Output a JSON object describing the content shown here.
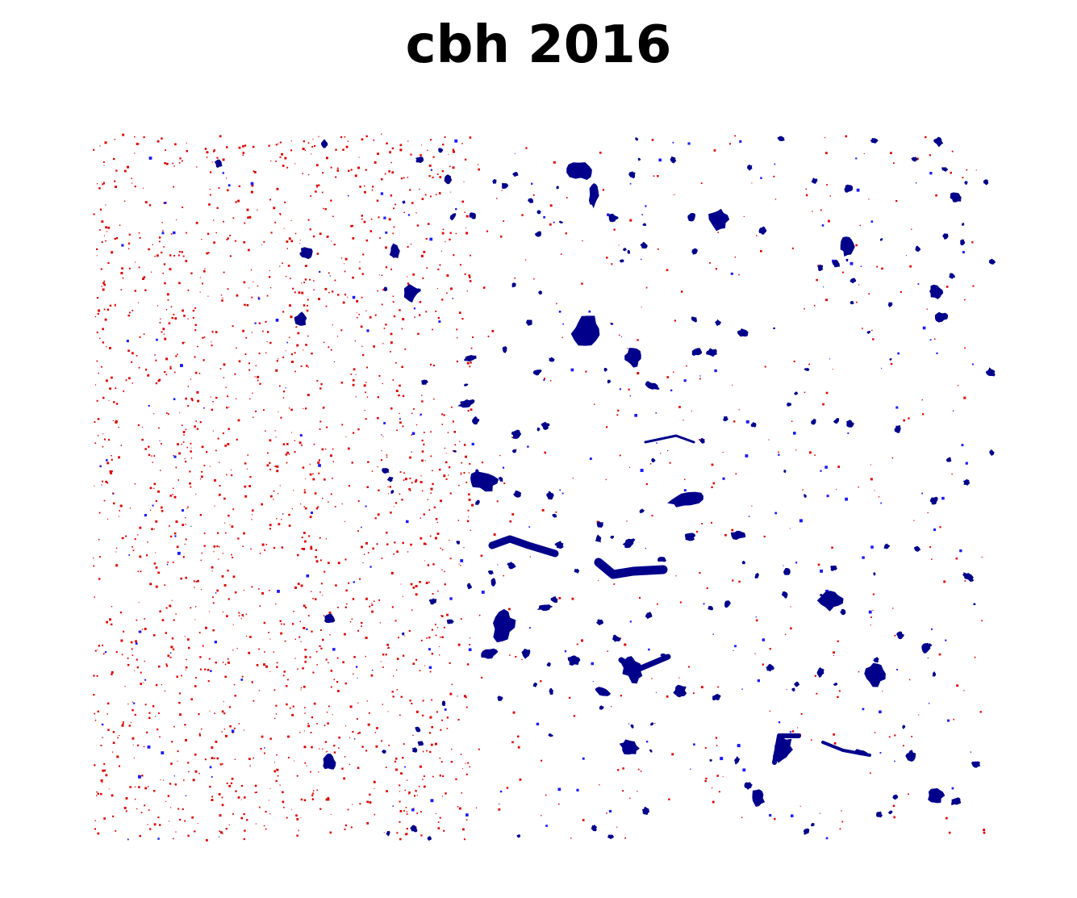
{
  "title": "cbh 2016",
  "colors": {
    "background": "#ffffff",
    "water_body": "#00008b",
    "change_blue": "#1a1aff",
    "change_red": "#dd0000"
  }
}
